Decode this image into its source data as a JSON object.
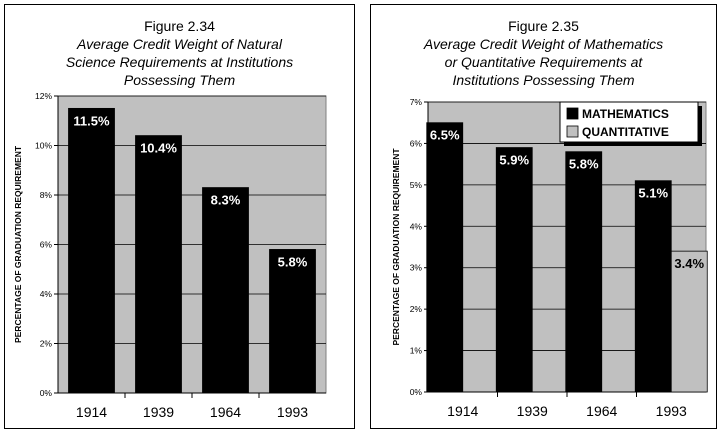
{
  "chart_data": [
    {
      "type": "bar",
      "figure_number": "Figure 2.34",
      "title_lines": [
        "Average Credit Weight of Natural",
        "Science Requirements at Institutions",
        "Possessing Them"
      ],
      "ylabel": "PERCENTAGE OF GRADUATION REQUIREMENT",
      "xlabel": "",
      "categories": [
        "1914",
        "1939",
        "1964",
        "1993"
      ],
      "ylim": [
        0,
        12
      ],
      "yticks": [
        0,
        2,
        4,
        6,
        8,
        10,
        12
      ],
      "ytick_labels": [
        "0%",
        "2%",
        "4%",
        "6%",
        "8%",
        "10%",
        "12%"
      ],
      "grid": true,
      "series": [
        {
          "values": [
            11.5,
            10.4,
            8.3,
            5.8
          ],
          "labels": [
            "11.5%",
            "10.4%",
            "8.3%",
            "5.8%"
          ],
          "color": "#000000"
        }
      ]
    },
    {
      "type": "bar",
      "figure_number": "Figure 2.35",
      "title_lines": [
        "Average Credit Weight of Mathematics",
        "or Quantitative Requirements at",
        "Institutions Possessing Them"
      ],
      "ylabel": "PERCENTAGE OF GRADUATION REQUIREMENT",
      "xlabel": "",
      "categories": [
        "1914",
        "1939",
        "1964",
        "1993"
      ],
      "ylim": [
        0,
        7
      ],
      "yticks": [
        0,
        1,
        2,
        3,
        4,
        5,
        6,
        7
      ],
      "ytick_labels": [
        "0%",
        "1%",
        "2%",
        "3%",
        "4%",
        "5%",
        "6%",
        "7%"
      ],
      "grid": true,
      "legend_position": "top-right",
      "series": [
        {
          "name": "MATHEMATICS",
          "values": [
            6.5,
            5.9,
            5.8,
            5.1
          ],
          "labels": [
            "6.5%",
            "5.9%",
            "5.8%",
            "5.1%"
          ],
          "color": "#000000"
        },
        {
          "name": "QUANTITATIVE",
          "values": [
            null,
            null,
            null,
            3.4
          ],
          "labels": [
            "",
            "",
            "",
            "3.4%"
          ],
          "color": "#c0c0c0"
        }
      ]
    }
  ]
}
